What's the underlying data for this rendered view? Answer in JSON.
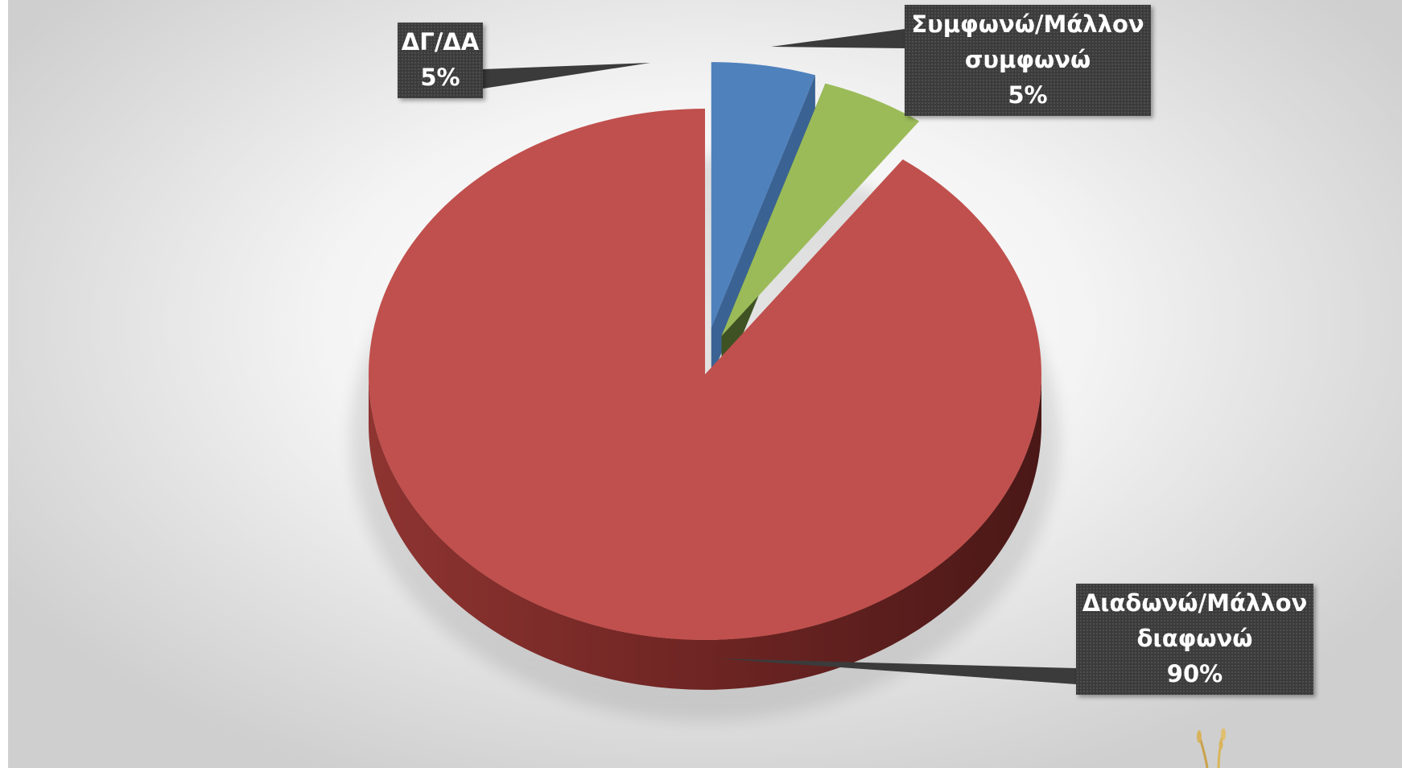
{
  "chart_data": {
    "type": "pie",
    "title": "",
    "style": "3d-exploded",
    "slices": [
      {
        "label_lines": [
          "Συμφωνώ/Μάλλον",
          "συμφωνώ"
        ],
        "value": 5,
        "percent": "5%",
        "color": "#4f81bd",
        "side_color": "#3a6394"
      },
      {
        "label_lines": [
          "ΔΓ/ΔΑ"
        ],
        "value": 5,
        "percent": "5%",
        "color": "#9bbb59",
        "side_color": "#3f5223"
      },
      {
        "label_lines": [
          "Διαδωνώ/Μάλλον",
          "διαφωνώ"
        ],
        "value": 90,
        "percent": "90%",
        "color": "#c0504d",
        "side_color": "#6e2523"
      }
    ],
    "data_labels": "callouts",
    "legend": "none"
  }
}
